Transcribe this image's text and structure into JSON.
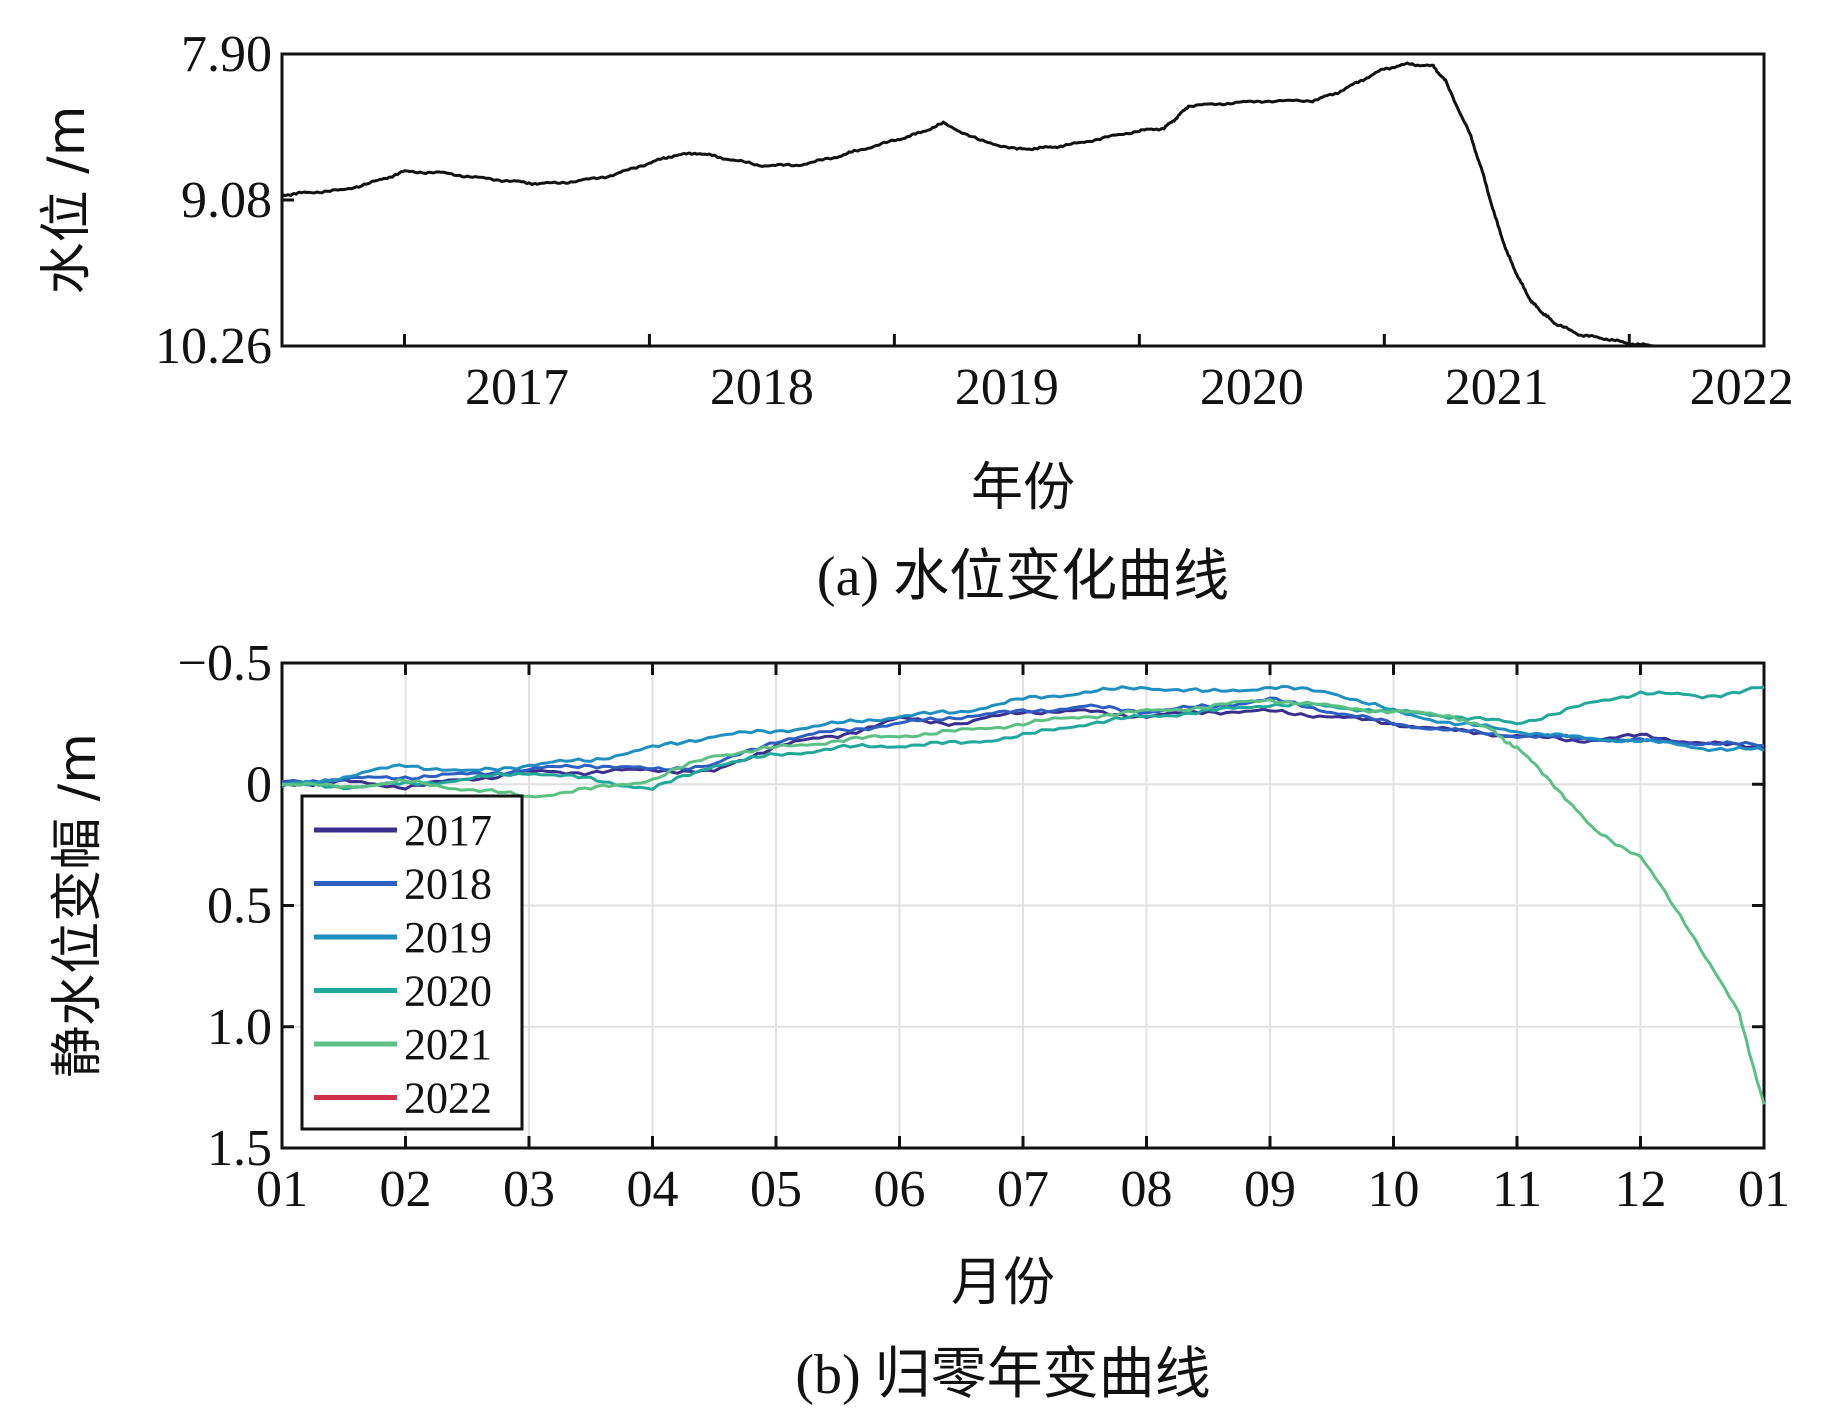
{
  "chart_data": [
    {
      "type": "line",
      "panel": "a",
      "caption": "(a) 水位变化曲线",
      "xlabel": "年份",
      "ylabel": "水位 /m",
      "x_ticks": [
        "2017",
        "2018",
        "2019",
        "2020",
        "2021",
        "2022"
      ],
      "y_ticks": [
        "7.90",
        "9.08",
        "10.26"
      ],
      "y_reversed": true,
      "xlim": [
        2016.5,
        2022.55
      ],
      "ylim": [
        7.9,
        10.26
      ],
      "grid": false,
      "colors": {
        "line": "#111111"
      },
      "series": [
        {
          "x": [
            2016.5,
            2016.6,
            2016.75,
            2016.9,
            2017.0,
            2017.15,
            2017.3,
            2017.45,
            2017.55,
            2017.7,
            2017.85,
            2018.0,
            2018.1,
            2018.2,
            2018.3,
            2018.45,
            2018.6,
            2018.75,
            2018.85,
            2019.0,
            2019.1,
            2019.2,
            2019.35,
            2019.5,
            2019.6,
            2019.7,
            2019.85,
            2020.0,
            2020.1,
            2020.15,
            2020.2,
            2020.35,
            2020.5,
            2020.7,
            2020.8,
            2020.9,
            2021.0,
            2021.1,
            2021.2,
            2021.25,
            2021.35,
            2021.4,
            2021.45,
            2021.5,
            2021.55,
            2021.6,
            2021.65,
            2021.7,
            2021.8,
            2021.9,
            2022.0,
            2022.1
          ],
          "y": [
            9.04,
            9.02,
            9.0,
            8.92,
            8.85,
            8.86,
            8.9,
            8.93,
            8.95,
            8.93,
            8.88,
            8.78,
            8.72,
            8.7,
            8.74,
            8.8,
            8.8,
            8.74,
            8.68,
            8.6,
            8.54,
            8.46,
            8.6,
            8.67,
            8.66,
            8.64,
            8.58,
            8.52,
            8.5,
            8.42,
            8.32,
            8.3,
            8.28,
            8.28,
            8.22,
            8.12,
            8.02,
            7.98,
            8.0,
            8.12,
            8.55,
            8.85,
            9.2,
            9.5,
            9.72,
            9.9,
            10.0,
            10.08,
            10.17,
            10.2,
            10.24,
            10.26
          ]
        }
      ]
    },
    {
      "type": "line",
      "panel": "b",
      "caption": "(b) 归零年变曲线",
      "xlabel": "月份",
      "ylabel": "静水位变幅 /m",
      "x_ticks": [
        "01",
        "02",
        "03",
        "04",
        "05",
        "06",
        "07",
        "08",
        "09",
        "10",
        "11",
        "12",
        "01"
      ],
      "y_ticks": [
        "−0.5",
        "0",
        "0.5",
        "1.0",
        "1.5"
      ],
      "y_reversed": true,
      "xlim": [
        0,
        12
      ],
      "ylim": [
        -0.5,
        1.5
      ],
      "grid": true,
      "legend": "lower-left",
      "series": [
        {
          "name": "2017",
          "color": "#3b2f8e",
          "x": [
            0,
            0.5,
            1,
            1.5,
            2,
            2.5,
            3,
            3.5,
            4,
            4.5,
            5,
            5.5,
            6,
            6.5,
            7,
            7.5,
            8,
            8.5,
            9,
            9.5,
            10,
            10.5,
            11,
            11.5,
            12
          ],
          "y": [
            0.0,
            -0.01,
            0.01,
            -0.02,
            -0.05,
            -0.05,
            -0.06,
            -0.05,
            -0.16,
            -0.2,
            -0.27,
            -0.25,
            -0.3,
            -0.3,
            -0.28,
            -0.3,
            -0.3,
            -0.28,
            -0.25,
            -0.22,
            -0.2,
            -0.18,
            -0.2,
            -0.17,
            -0.15
          ]
        },
        {
          "name": "2018",
          "color": "#2d5fc0",
          "x": [
            0,
            0.5,
            1,
            1.5,
            2,
            2.5,
            3,
            3.5,
            4,
            4.5,
            5,
            5.5,
            6,
            6.5,
            7,
            7.5,
            8,
            8.5,
            9,
            9.5,
            10,
            10.5,
            11,
            11.5,
            12
          ],
          "y": [
            -0.01,
            -0.02,
            -0.03,
            -0.04,
            -0.06,
            -0.08,
            -0.06,
            -0.08,
            -0.18,
            -0.22,
            -0.25,
            -0.28,
            -0.3,
            -0.32,
            -0.3,
            -0.32,
            -0.35,
            -0.3,
            -0.25,
            -0.22,
            -0.2,
            -0.19,
            -0.18,
            -0.17,
            -0.16
          ]
        },
        {
          "name": "2019",
          "color": "#1f8fbf",
          "x": [
            0,
            0.5,
            1,
            1.5,
            2,
            2.5,
            3,
            3.5,
            4,
            4.5,
            5,
            5.5,
            6,
            6.5,
            7,
            7.5,
            8,
            8.5,
            9,
            9.5,
            10,
            10.5,
            11,
            11.5,
            12
          ],
          "y": [
            0.01,
            -0.03,
            -0.08,
            -0.05,
            -0.08,
            -0.1,
            -0.15,
            -0.2,
            -0.22,
            -0.25,
            -0.28,
            -0.3,
            -0.35,
            -0.38,
            -0.4,
            -0.38,
            -0.4,
            -0.38,
            -0.3,
            -0.25,
            -0.22,
            -0.19,
            -0.18,
            -0.15,
            -0.14
          ]
        },
        {
          "name": "2020",
          "color": "#22a89a",
          "x": [
            0,
            0.5,
            1,
            1.5,
            2,
            2.5,
            3,
            3.5,
            4,
            4.5,
            5,
            5.5,
            6,
            6.5,
            7,
            7.5,
            8,
            8.5,
            9,
            9.5,
            10,
            10.5,
            11,
            11.5,
            12
          ],
          "y": [
            0.0,
            0.01,
            0.0,
            -0.02,
            -0.05,
            -0.02,
            0.02,
            -0.08,
            -0.12,
            -0.15,
            -0.16,
            -0.17,
            -0.2,
            -0.25,
            -0.28,
            -0.3,
            -0.33,
            -0.32,
            -0.3,
            -0.28,
            -0.25,
            -0.32,
            -0.38,
            -0.36,
            -0.4
          ]
        },
        {
          "name": "2021",
          "color": "#5cbf84",
          "x": [
            0,
            0.5,
            1,
            1.5,
            2,
            2.5,
            3,
            3.5,
            4,
            4.5,
            5,
            5.5,
            6,
            6.5,
            7,
            7.5,
            8,
            8.5,
            9,
            9.5,
            9.8,
            10,
            10.3,
            10.6,
            11,
            11.4,
            11.8,
            12
          ],
          "y": [
            0.0,
            0.01,
            -0.01,
            0.02,
            0.05,
            0.02,
            -0.02,
            -0.12,
            -0.15,
            -0.18,
            -0.2,
            -0.22,
            -0.25,
            -0.28,
            -0.3,
            -0.32,
            -0.35,
            -0.32,
            -0.3,
            -0.28,
            -0.22,
            -0.15,
            0.0,
            0.18,
            0.3,
            0.6,
            0.95,
            1.32
          ]
        },
        {
          "name": "2022",
          "color": "#d0314a",
          "x": [],
          "y": []
        }
      ]
    }
  ]
}
